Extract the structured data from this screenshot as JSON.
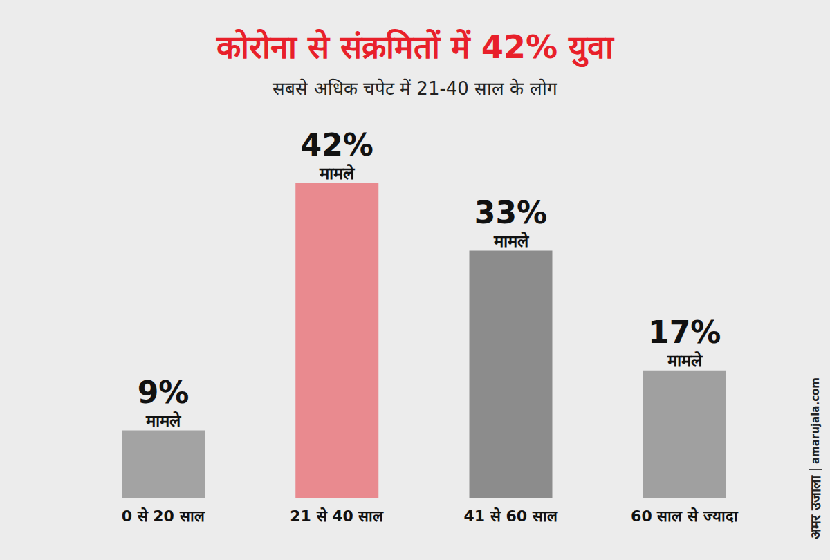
{
  "chart_data": {
    "type": "bar",
    "title": "कोरोना से संक्रमितों में 42% युवा",
    "subtitle": "सबसे अधिक चपेट में 21-40 साल के लोग",
    "categories": [
      "0 से 20 साल",
      "21 से 40 साल",
      "41 से 60 साल",
      "60 साल से ज्यादा"
    ],
    "values": [
      9,
      42,
      33,
      17
    ],
    "value_labels": [
      "9% मामले",
      "42% मामले",
      "33% मामले",
      "17% मामले"
    ],
    "colors": [
      "#a3a3a3",
      "#e98a8f",
      "#8c8c8c",
      "#a0a0a0"
    ],
    "ylim": [
      0,
      42
    ],
    "yticks": [
      0,
      42
    ],
    "grid": false,
    "data_labels": true,
    "tick_labels": "x",
    "annotations": [
      "अमर उजाला",
      "amarujala.com"
    ]
  }
}
